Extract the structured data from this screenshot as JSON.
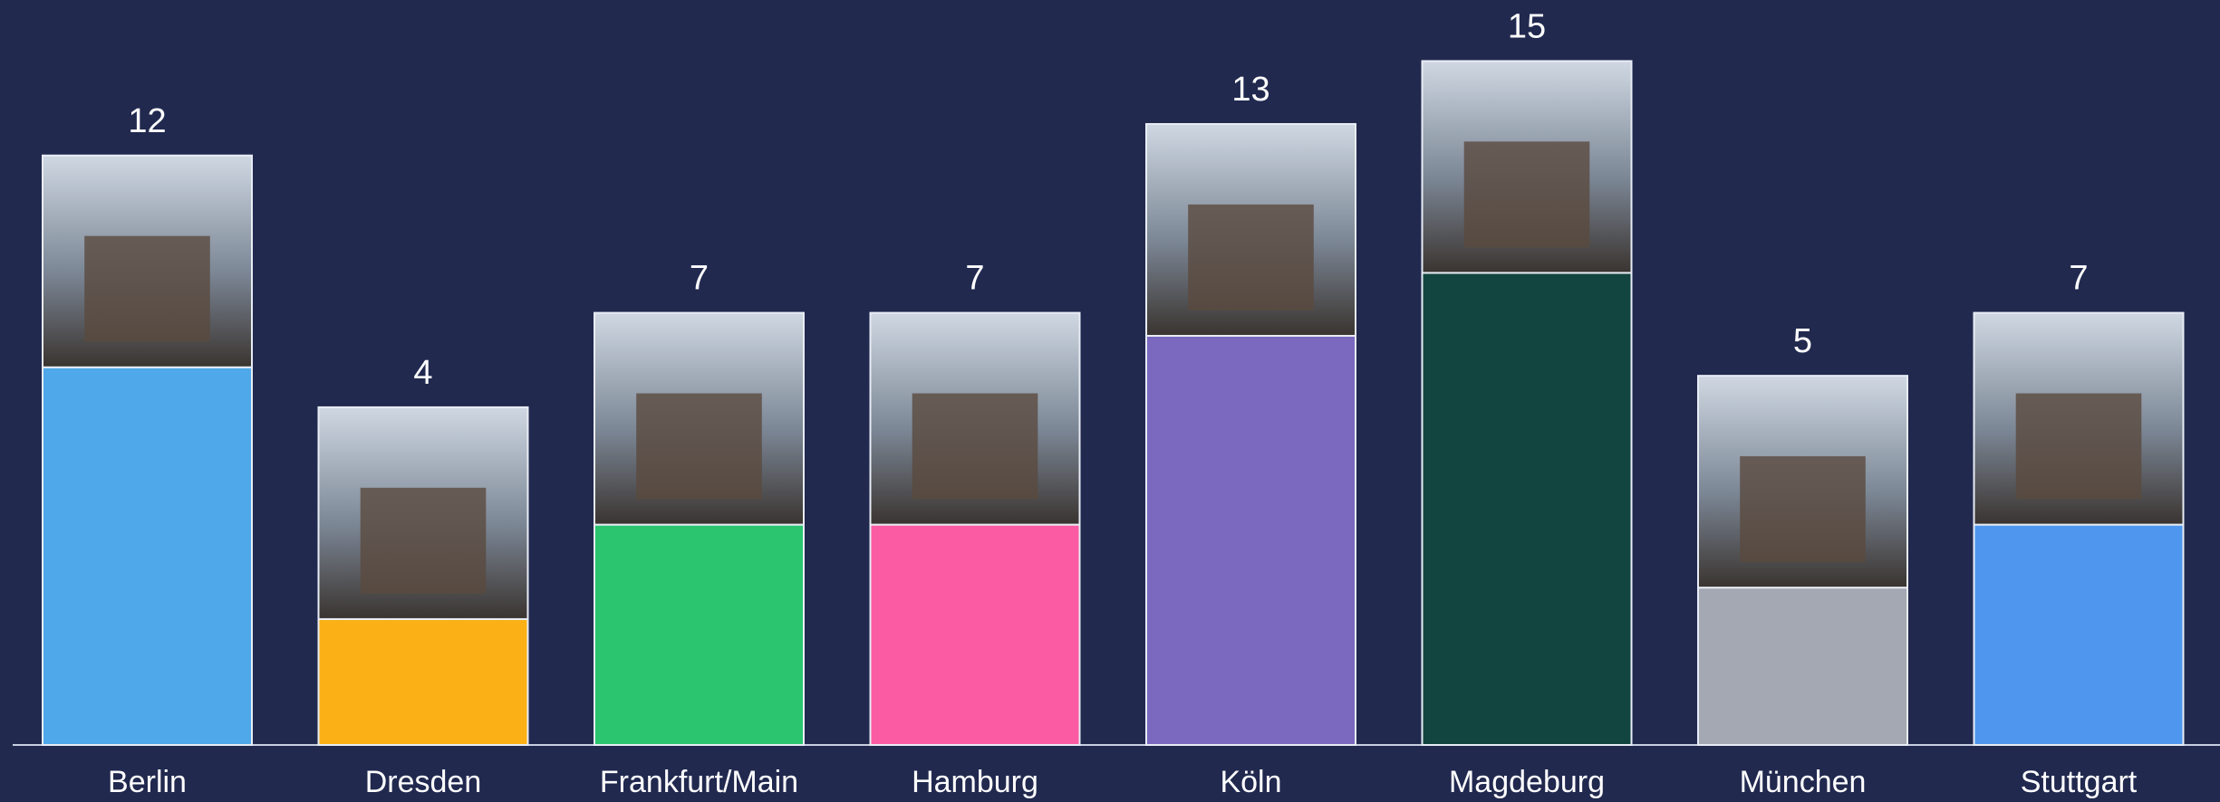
{
  "chart_data": {
    "type": "bar",
    "categories": [
      "Berlin",
      "Dresden",
      "Frankfurt/Main",
      "Hamburg",
      "Köln",
      "Magdeburg",
      "München",
      "Stuttgart"
    ],
    "values": [
      12,
      4,
      7,
      7,
      13,
      15,
      5,
      7
    ],
    "colors": [
      "#4ea8ea",
      "#fbb016",
      "#2bc46f",
      "#fb5ba2",
      "#7b69c0",
      "#12453f",
      "#a4a8b3",
      "#4f97ee"
    ]
  }
}
